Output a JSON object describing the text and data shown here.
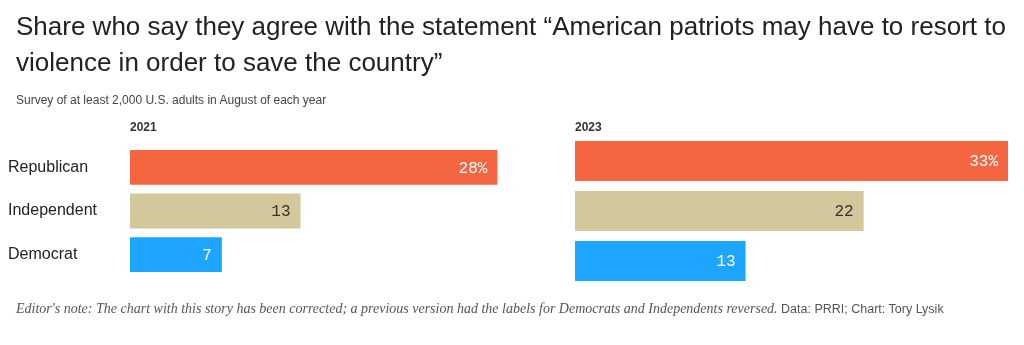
{
  "chart_data": [
    {
      "type": "other",
      "title": "Share who say they agree with the statement “American patriots may have to resort to violence in order to save the country”",
      "subtitle": "Survey of at least 2,000 U.S. adults in August of each year",
      "annotations": [
        "Editor's note: The chart with this story has been corrected; a previous version had the labels for Democrats and Independents reversed.",
        "Data: PRRI; Chart: Tory Lysik"
      ]
    },
    {
      "type": "bar",
      "orientation": "horizontal",
      "title": "2021",
      "categories": [
        "Republican",
        "Independent",
        "Democrat"
      ],
      "values": [
        28,
        13,
        7
      ],
      "colors": [
        "#f56540",
        "#d3c89b",
        "#1ea5ff"
      ],
      "value_labels": [
        "28%",
        "13",
        "7"
      ],
      "tick_labels": "y",
      "legend": false
    },
    {
      "type": "bar",
      "orientation": "horizontal",
      "title": "2023",
      "categories": [
        null,
        null,
        null
      ],
      "values": [
        33,
        22,
        13
      ],
      "colors": [
        "#f56540",
        "#d3c89b",
        "#1ea5ff"
      ],
      "value_labels": [
        "33%",
        "22",
        "13"
      ],
      "tick_labels": false,
      "legend": false
    }
  ]
}
